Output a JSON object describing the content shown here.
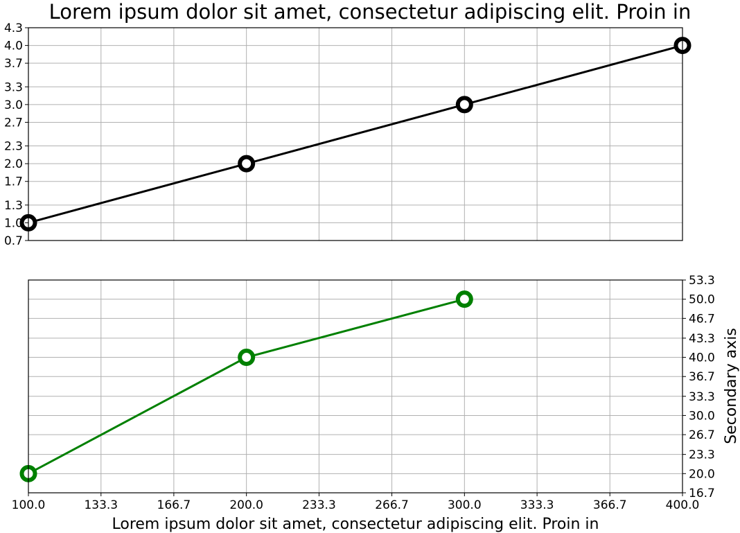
{
  "chart_data": [
    {
      "type": "line",
      "title": "Lorem ipsum dolor sit amet, consectetur adipiscing elit. Proin in",
      "xlabel": "",
      "ylabel": "",
      "xlim": [
        100,
        400
      ],
      "ylim": [
        0.7,
        4.3
      ],
      "xticks": [
        "100.0",
        "133.3",
        "166.7",
        "200.0",
        "233.3",
        "266.7",
        "300.0",
        "333.3",
        "366.7",
        "400.0"
      ],
      "yticks": [
        "0.7",
        "1.0",
        "1.3",
        "1.7",
        "2.0",
        "2.3",
        "2.7",
        "3.0",
        "3.3",
        "3.7",
        "4.0",
        "4.3"
      ],
      "grid": true,
      "series": [
        {
          "x": [
            100,
            200,
            300,
            400
          ],
          "values": [
            1,
            2,
            3,
            4
          ],
          "color": "#000000",
          "marker": "hollow-circle"
        }
      ]
    },
    {
      "type": "line",
      "title": "",
      "xlabel": "Lorem ipsum dolor sit amet, consectetur adipiscing elit. Proin in",
      "ylabel": "Secondary axis",
      "ylabel_side": "right",
      "xlim": [
        100,
        400
      ],
      "ylim": [
        16.7,
        53.3
      ],
      "xticks": [
        "100.0",
        "133.3",
        "166.7",
        "200.0",
        "233.3",
        "266.7",
        "300.0",
        "333.3",
        "366.7",
        "400.0"
      ],
      "yticks": [
        "16.7",
        "20.0",
        "23.3",
        "26.7",
        "30.0",
        "33.3",
        "36.7",
        "40.0",
        "43.3",
        "46.7",
        "50.0",
        "53.3"
      ],
      "grid": true,
      "series": [
        {
          "x": [
            100,
            200,
            300
          ],
          "values": [
            20,
            40,
            50
          ],
          "color": "#008000",
          "marker": "hollow-circle"
        }
      ]
    }
  ]
}
